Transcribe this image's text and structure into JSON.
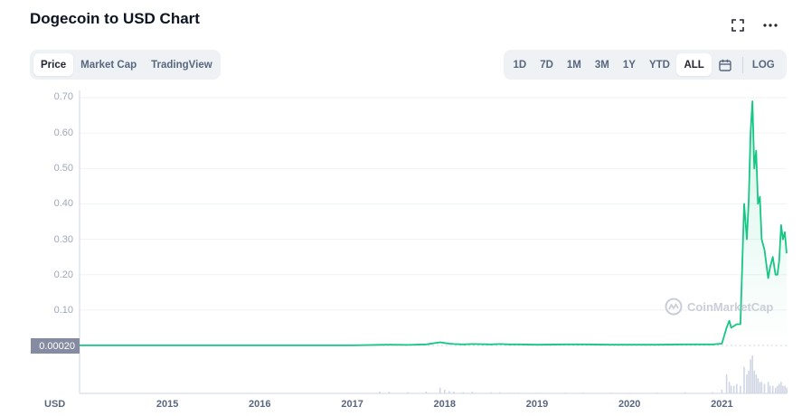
{
  "header": {
    "title": "Dogecoin to USD Chart",
    "fullscreen_icon": "expand-icon",
    "more_icon": "more-horizontal-icon"
  },
  "chart_type_tabs": [
    {
      "label": "Price",
      "active": true
    },
    {
      "label": "Market Cap",
      "active": false
    },
    {
      "label": "TradingView",
      "active": false
    }
  ],
  "range_tabs": [
    {
      "label": "1D",
      "active": false
    },
    {
      "label": "7D",
      "active": false
    },
    {
      "label": "1M",
      "active": false
    },
    {
      "label": "3M",
      "active": false
    },
    {
      "label": "1Y",
      "active": false
    },
    {
      "label": "YTD",
      "active": false
    },
    {
      "label": "ALL",
      "active": true
    }
  ],
  "calendar_icon": "calendar-icon",
  "log_label": "LOG",
  "current_price_label": "0.00020",
  "currency_label": "USD",
  "watermark": "CoinMarketCap",
  "colors": {
    "line": "#16c784",
    "grid": "#eff2f5",
    "volume": "#cfd6e4"
  },
  "chart_data": {
    "type": "area",
    "title": "Dogecoin to USD Chart",
    "ylabel": "USD",
    "ylim": [
      0,
      0.7
    ],
    "yticks": [
      "0.10",
      "0.20",
      "0.30",
      "0.40",
      "0.50",
      "0.60",
      "0.70"
    ],
    "xticks": [
      "2015",
      "2016",
      "2017",
      "2018",
      "2019",
      "2020",
      "2021"
    ],
    "series": [
      {
        "x": [
          2014.0,
          2014.5,
          2015.0,
          2015.5,
          2016.0,
          2016.5,
          2017.0,
          2017.3,
          2017.4,
          2017.6,
          2017.8,
          2017.95,
          2018.0,
          2018.05,
          2018.1,
          2018.2,
          2018.3,
          2018.5,
          2018.6,
          2018.7,
          2018.8,
          2019.0,
          2019.3,
          2019.5,
          2019.8,
          2020.0,
          2020.3,
          2020.6,
          2020.9,
          2021.0,
          2021.05,
          2021.08,
          2021.1,
          2021.13,
          2021.16,
          2021.2,
          2021.24,
          2021.27,
          2021.29,
          2021.31,
          2021.33,
          2021.35,
          2021.37,
          2021.39,
          2021.41,
          2021.43,
          2021.46,
          2021.5,
          2021.52,
          2021.55,
          2021.58,
          2021.6,
          2021.62,
          2021.64,
          2021.66,
          2021.68,
          2021.7
        ],
        "values": [
          0.0003,
          0.0002,
          0.0002,
          0.0002,
          0.0002,
          0.0002,
          0.0002,
          0.0018,
          0.002,
          0.0015,
          0.003,
          0.009,
          0.007,
          0.005,
          0.004,
          0.003,
          0.004,
          0.003,
          0.004,
          0.003,
          0.003,
          0.002,
          0.003,
          0.003,
          0.002,
          0.002,
          0.002,
          0.003,
          0.003,
          0.005,
          0.05,
          0.07,
          0.05,
          0.055,
          0.06,
          0.06,
          0.4,
          0.3,
          0.41,
          0.6,
          0.69,
          0.5,
          0.55,
          0.4,
          0.42,
          0.3,
          0.27,
          0.19,
          0.22,
          0.25,
          0.2,
          0.2,
          0.24,
          0.34,
          0.3,
          0.32,
          0.26
        ]
      }
    ],
    "volume_values": [
      0,
      0,
      0,
      0,
      0,
      0,
      0,
      0.05,
      0.04,
      0.03,
      0.05,
      0.15,
      0.1,
      0.06,
      0.05,
      0.03,
      0.04,
      0.03,
      0.03,
      0.02,
      0.02,
      0.02,
      0.02,
      0.02,
      0.02,
      0.02,
      0.02,
      0.03,
      0.03,
      0.1,
      0.5,
      0.3,
      0.2,
      0.2,
      0.25,
      0.2,
      0.7,
      0.5,
      0.6,
      0.9,
      1.0,
      0.6,
      0.5,
      0.4,
      0.3,
      0.3,
      0.25,
      0.3,
      0.2,
      0.2,
      0.15,
      0.2,
      0.25,
      0.3,
      0.2,
      0.2,
      0.15
    ],
    "grid": true
  }
}
